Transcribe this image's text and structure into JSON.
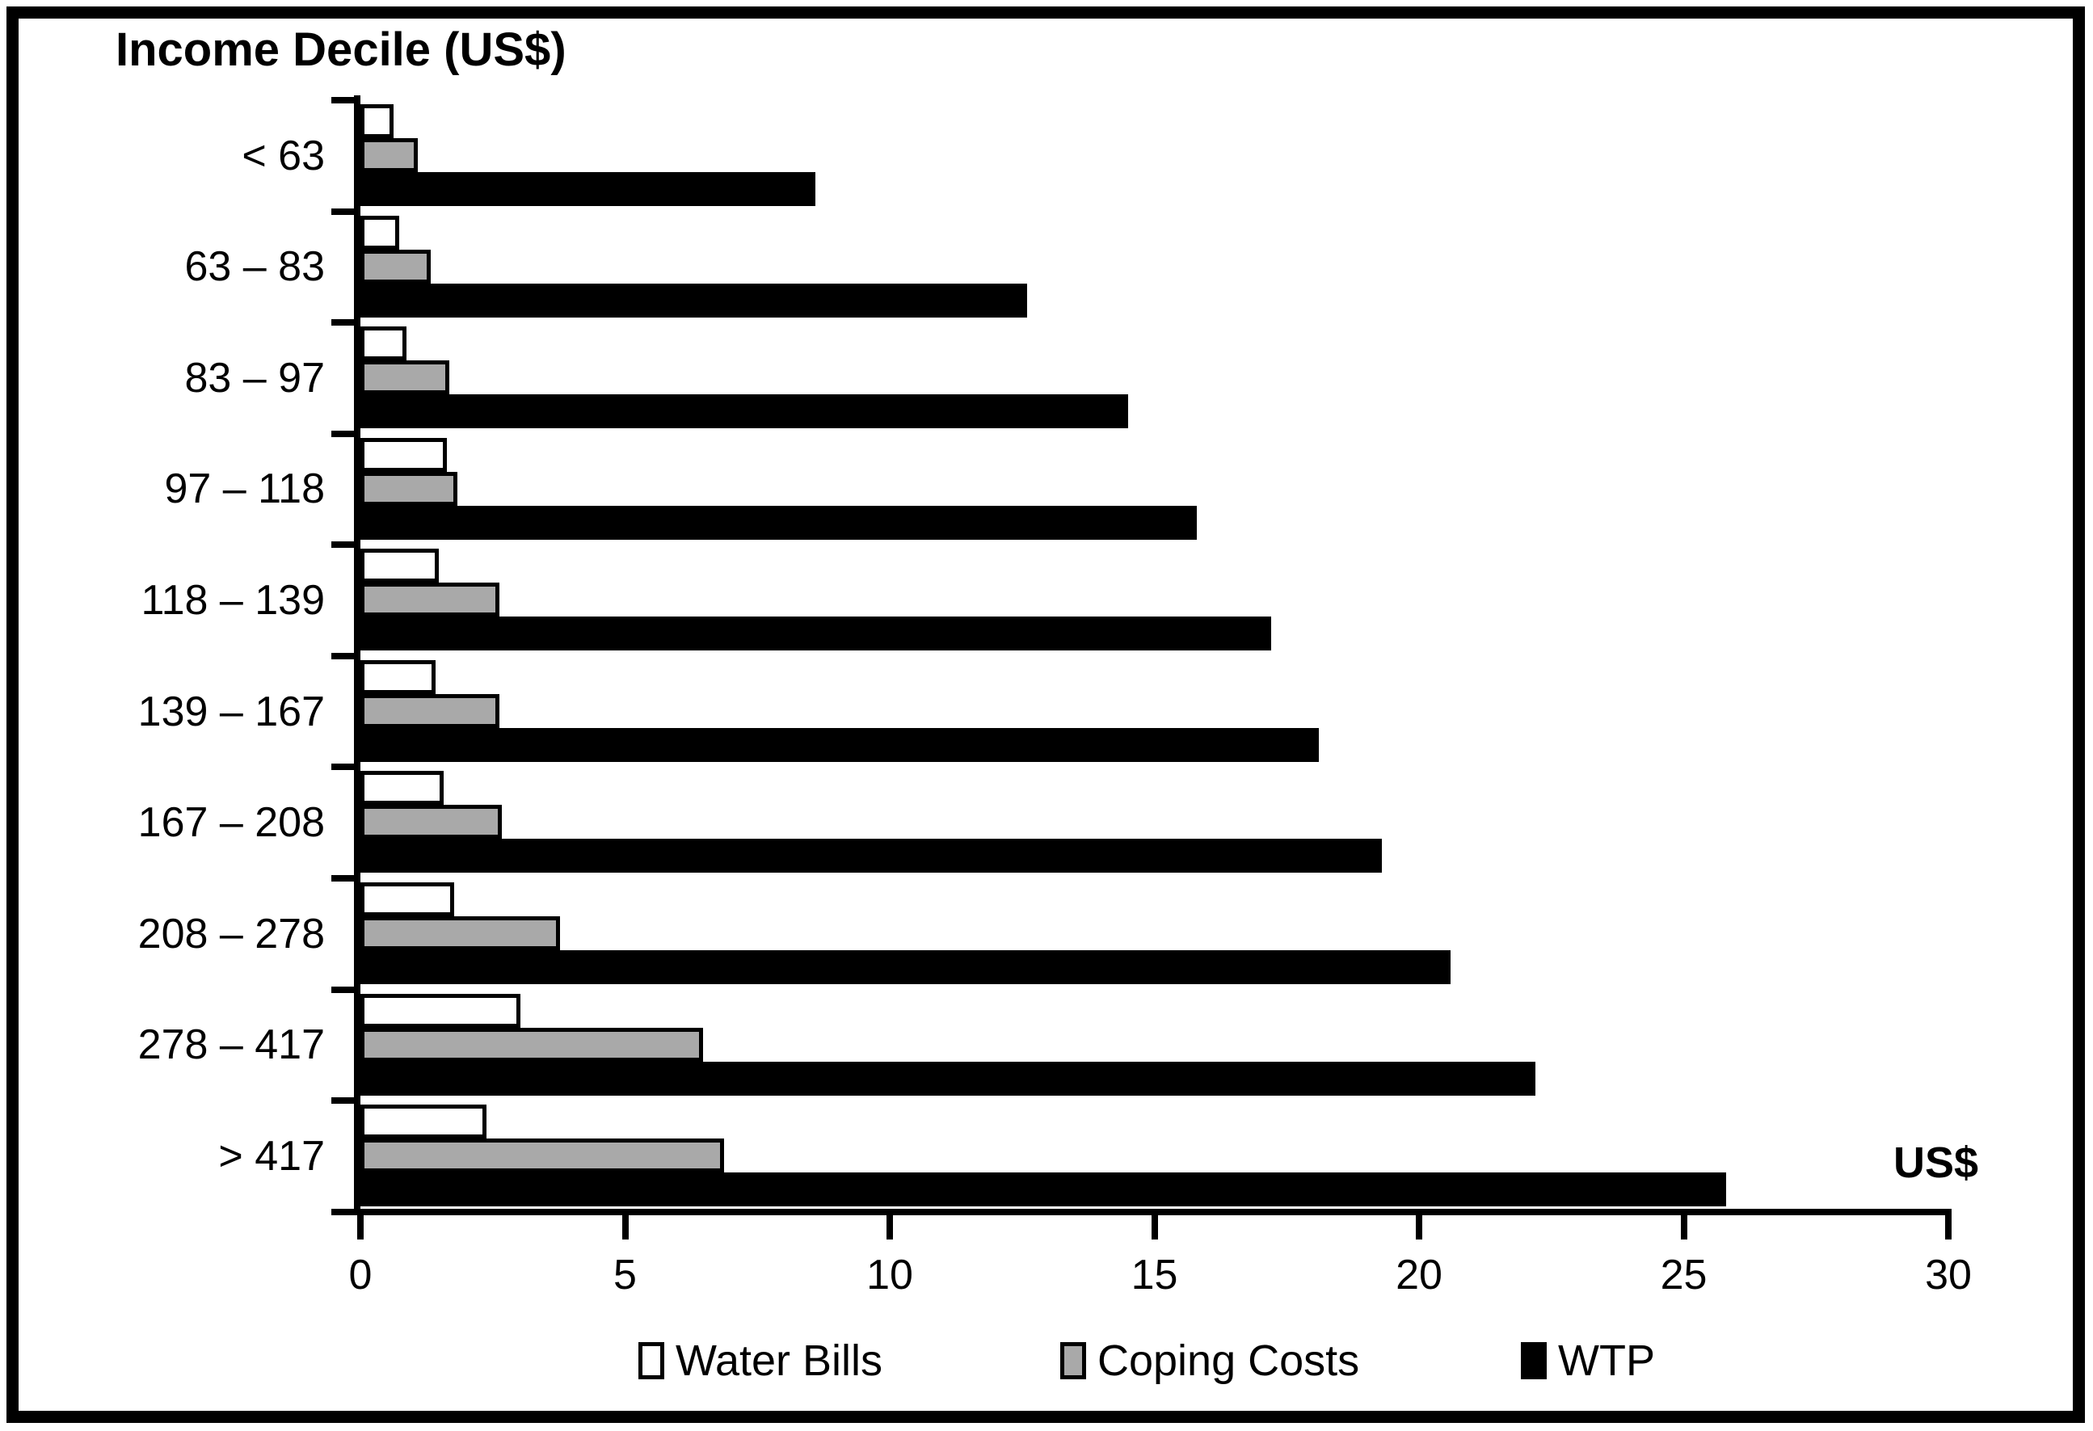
{
  "title": "Income Decile (US$)",
  "chart_data": {
    "type": "bar",
    "orientation": "horizontal",
    "title": "Income Decile (US$)",
    "ylabel": "Income Decile (US$)",
    "xlabel": "US$",
    "xlim": [
      0,
      30
    ],
    "x_ticks": [
      0,
      5,
      10,
      15,
      20,
      25,
      30
    ],
    "grid": false,
    "legend_position": "bottom",
    "categories": [
      "< 63",
      "63 – 83",
      "83 – 97",
      "97 – 118",
      "118 – 139",
      "139 – 167",
      "167 – 208",
      "208 – 278",
      "278 – 417",
      "> 417"
    ],
    "series": [
      {
        "name": "Water Bills",
        "fill": "#ffffff",
        "border": "#000000",
        "values": [
          0.55,
          0.65,
          0.8,
          1.55,
          1.4,
          1.35,
          1.5,
          1.7,
          2.95,
          2.3
        ]
      },
      {
        "name": "Coping Costs",
        "fill": "#a9a9a9",
        "border": "#000000",
        "values": [
          1.0,
          1.25,
          1.6,
          1.75,
          2.55,
          2.55,
          2.6,
          3.7,
          6.4,
          6.8
        ]
      },
      {
        "name": "WTP",
        "fill": "#000000",
        "border": "#000000",
        "values": [
          8.6,
          12.6,
          14.5,
          15.8,
          17.2,
          18.1,
          19.3,
          20.6,
          22.2,
          25.8
        ]
      }
    ]
  },
  "colors": {
    "axis": "#000000",
    "background": "#ffffff"
  }
}
